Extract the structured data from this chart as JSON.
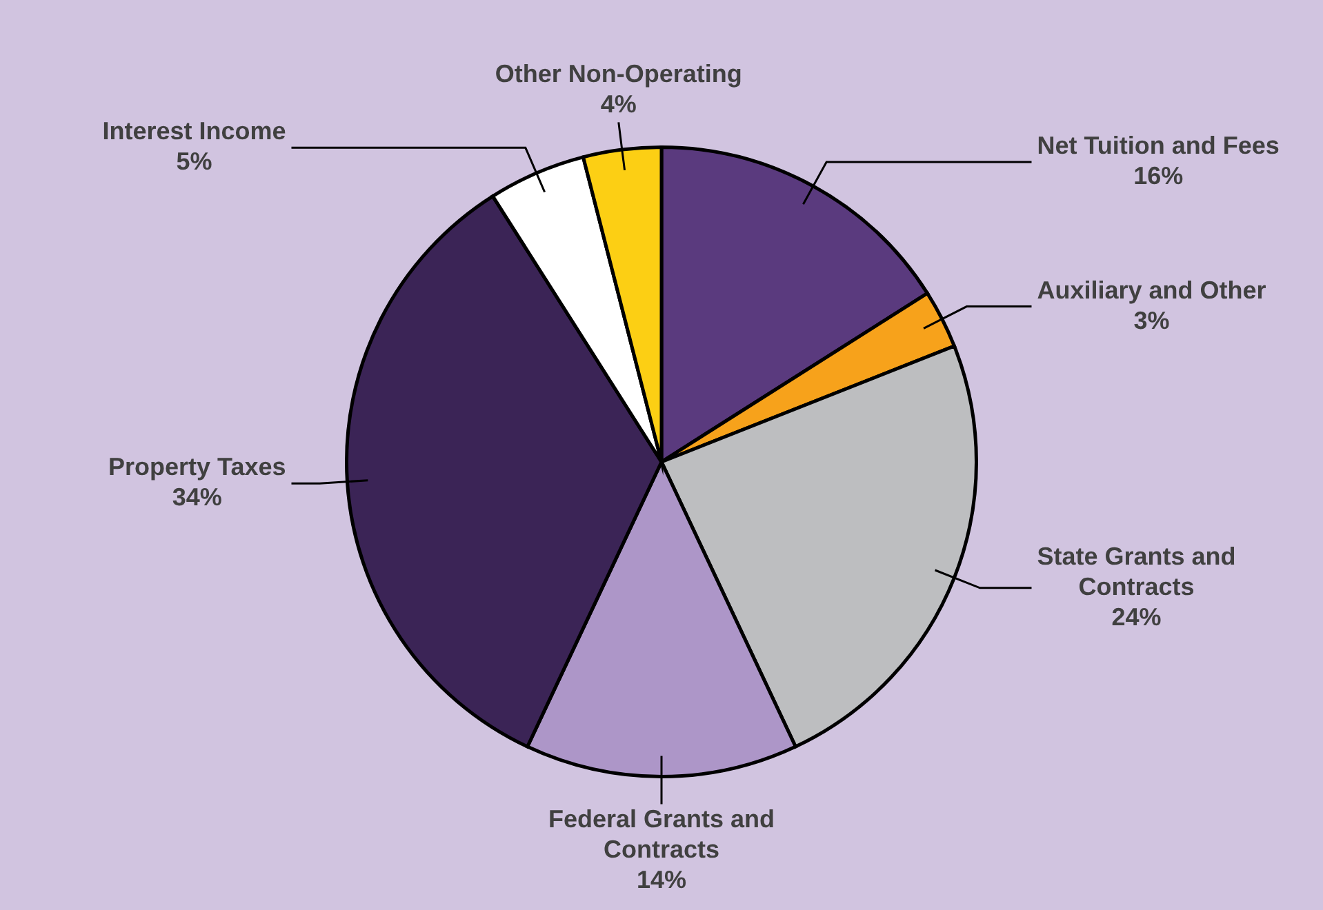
{
  "chart_data": {
    "type": "pie",
    "categories": [
      "Net Tuition and Fees",
      "Auxiliary and Other",
      "State Grants and Contracts",
      "Federal Grants and Contracts",
      "Property Taxes",
      "Interest Income",
      "Other Non-Operating"
    ],
    "values": [
      16,
      3,
      24,
      14,
      34,
      5,
      4
    ],
    "colors": [
      "#5a3a7e",
      "#f7a21b",
      "#bdbec0",
      "#ad96c8",
      "#3b2456",
      "#ffffff",
      "#fccf14"
    ],
    "value_labels": [
      "16%",
      "3%",
      "24%",
      "14%",
      "34%",
      "5%",
      "4%"
    ]
  }
}
